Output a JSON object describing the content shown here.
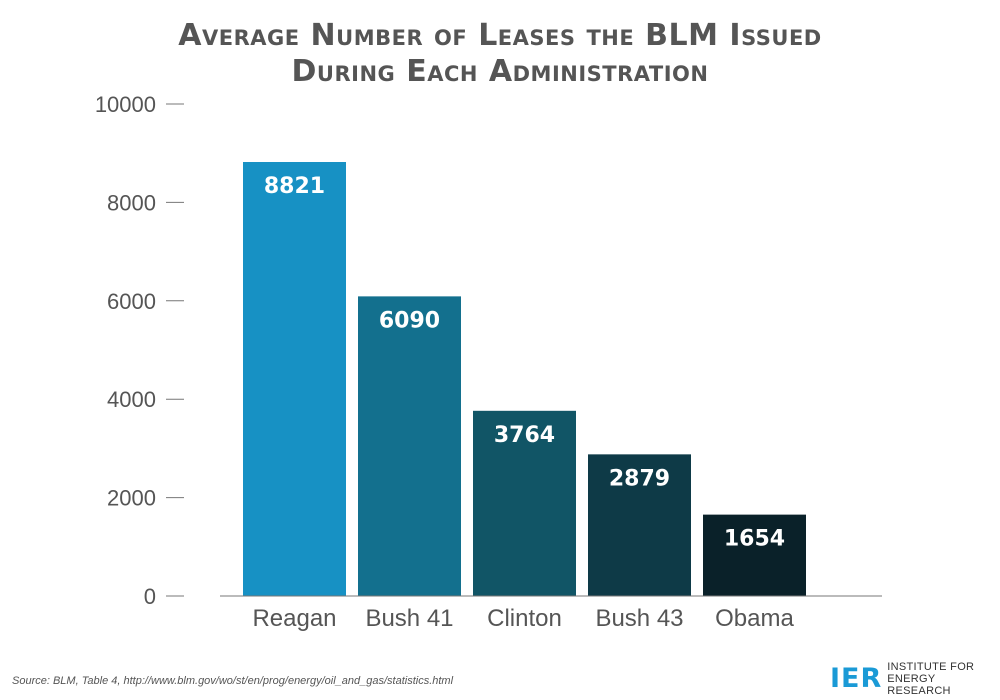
{
  "title": {
    "line1": "Average Number of Leases the BLM Issued",
    "line2": "During Each Administration"
  },
  "chart_data": {
    "type": "bar",
    "categories": [
      "Reagan",
      "Bush 41",
      "Clinton",
      "Bush 43",
      "Obama"
    ],
    "values": [
      8821,
      6090,
      3764,
      2879,
      1654
    ],
    "data_labels": [
      "8821",
      "6090",
      "3764",
      "2879",
      "1654"
    ],
    "colors": [
      "#1791c4",
      "#13708e",
      "#115566",
      "#0e3a47",
      "#0a2129"
    ],
    "ylim": [
      0,
      10000
    ],
    "yticks": [
      0,
      2000,
      4000,
      6000,
      8000,
      10000
    ],
    "ytick_labels": [
      "0",
      "2000",
      "4000",
      "6000",
      "8000",
      "10000"
    ],
    "xlabel": "",
    "ylabel": "",
    "grid": false,
    "legend": "none"
  },
  "source": "Source: BLM, Table 4, http://www.blm.gov/wo/st/en/prog/energy/oil_and_gas/statistics.html",
  "logo": {
    "mark": "IER",
    "line1": "INSTITUTE FOR",
    "line2": "ENERGY RESEARCH",
    "color": "#1a9ad6"
  }
}
